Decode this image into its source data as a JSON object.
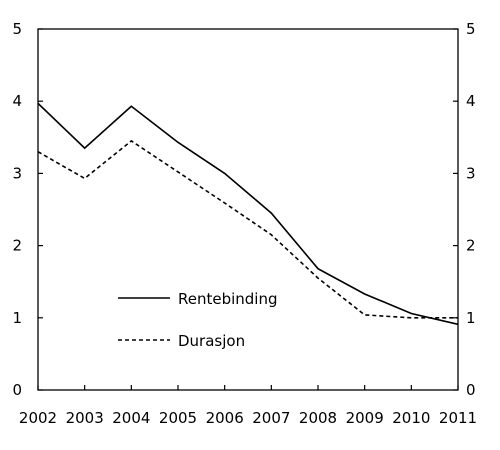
{
  "chart_data": {
    "type": "line",
    "x": [
      "2002",
      "2003",
      "2004",
      "2005",
      "2006",
      "2007",
      "2008",
      "2009",
      "2010",
      "2011"
    ],
    "ylim": [
      0,
      5
    ],
    "yticks": [
      "0",
      "1",
      "2",
      "3",
      "4",
      "5"
    ],
    "grid": false,
    "legend_position": "lower-left inside plot",
    "series": [
      {
        "name": "Rentebinding",
        "style": "solid",
        "color": "#000000",
        "values": [
          3.97,
          3.35,
          3.93,
          3.43,
          3.0,
          2.45,
          1.68,
          1.33,
          1.06,
          0.91
        ]
      },
      {
        "name": "Durasjon",
        "style": "dashed",
        "color": "#000000",
        "values": [
          3.3,
          2.93,
          3.45,
          3.02,
          2.59,
          2.15,
          1.55,
          1.04,
          1.0,
          1.0
        ]
      }
    ]
  }
}
